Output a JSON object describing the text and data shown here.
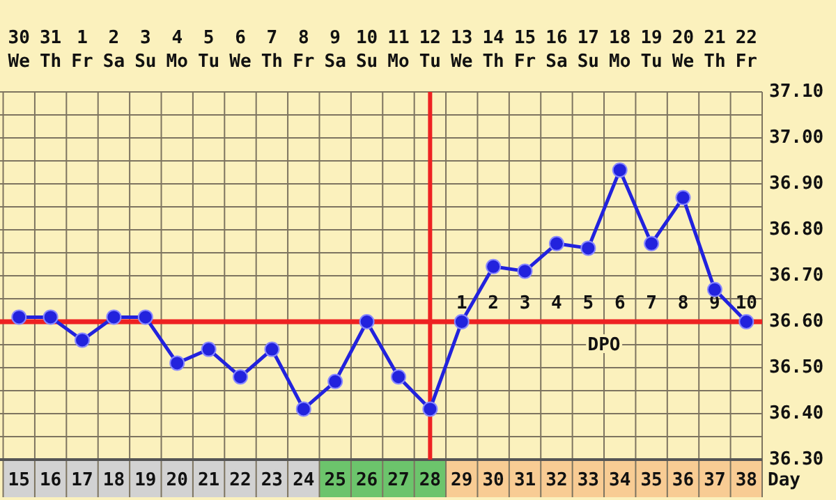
{
  "chart_data": {
    "type": "line",
    "xlabel": "Day",
    "x": [
      15,
      16,
      17,
      18,
      19,
      20,
      21,
      22,
      23,
      24,
      25,
      26,
      27,
      28,
      29,
      30,
      31,
      32,
      33,
      34,
      35,
      36,
      37,
      38
    ],
    "series": [
      {
        "color": "#2222dd",
        "values": [
          36.61,
          36.61,
          36.56,
          36.61,
          36.61,
          36.51,
          36.54,
          36.48,
          36.54,
          36.41,
          36.47,
          36.6,
          36.48,
          36.41,
          36.6,
          36.72,
          36.71,
          36.77,
          36.76,
          36.93,
          36.77,
          36.87,
          36.67,
          36.6
        ]
      }
    ],
    "xlim": [
      14.4,
      38.5
    ],
    "xticks": [
      15,
      16,
      17,
      18,
      19,
      20,
      21,
      22,
      23,
      24,
      25,
      26,
      27,
      28,
      29,
      30,
      31,
      32,
      33,
      34,
      35,
      36,
      37,
      38
    ],
    "ylim": [
      36.3,
      37.1
    ],
    "yticks": [
      {
        "value": 36.3,
        "label": "36.30"
      },
      {
        "value": 36.35,
        "label": null
      },
      {
        "value": 36.4,
        "label": "36.40"
      },
      {
        "value": 36.45,
        "label": null
      },
      {
        "value": 36.5,
        "label": "36.50"
      },
      {
        "value": 36.55,
        "label": null
      },
      {
        "value": 36.6,
        "label": "36.60"
      },
      {
        "value": 36.65,
        "label": null
      },
      {
        "value": 36.7,
        "label": "36.70"
      },
      {
        "value": 36.75,
        "label": null
      },
      {
        "value": 36.8,
        "label": "36.80"
      },
      {
        "value": 36.85,
        "label": null
      },
      {
        "value": 36.9,
        "label": "36.90"
      },
      {
        "value": 36.95,
        "label": null
      },
      {
        "value": 37.0,
        "label": "37.00"
      },
      {
        "value": 37.05,
        "label": null
      },
      {
        "value": 37.1,
        "label": "37.10"
      }
    ],
    "grid": true,
    "marker": "circle",
    "ref_lines": [
      {
        "axis": "y",
        "value": 36.6,
        "color": "#ee2222"
      },
      {
        "axis": "x",
        "value": 28,
        "color": "#ee2222"
      }
    ],
    "annotations": [
      "30 We",
      "31 Th",
      "1 Fr",
      "2 Sa",
      "3 Su",
      "4 Mo",
      "5 Tu",
      "6 We",
      "7 Th",
      "8 Fr",
      "9 Sa",
      "10 Su",
      "11 Mo",
      "12 Tu",
      "13 We",
      "14 Th",
      "15 Fr",
      "16 Sa",
      "17 Su",
      "18 Mo",
      "19 Tu",
      "20 We",
      "21 Th",
      "22 Fr",
      "1",
      "2",
      "3",
      "4",
      "5",
      "6",
      "7",
      "8",
      "9",
      "10",
      "DPO"
    ]
  }
}
